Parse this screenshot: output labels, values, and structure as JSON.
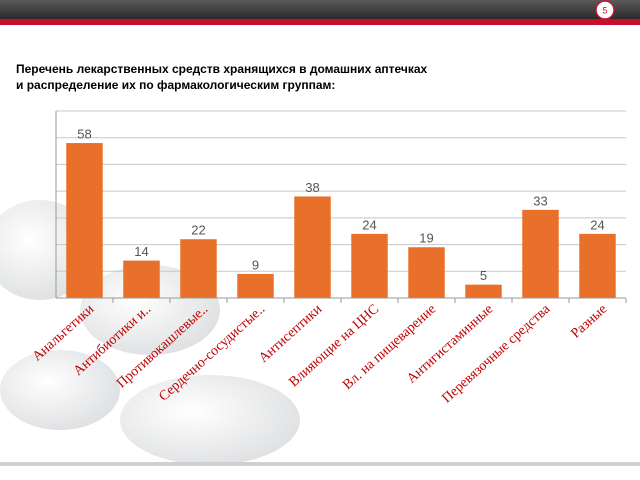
{
  "slide_number": "5",
  "chart_data": {
    "type": "bar",
    "title": "Перечень лекарственных средств  хранящихся  в домашних аптечках",
    "subtitle": "и распределение их по фармакологическим группам:",
    "categories": [
      "Анальгетики",
      "Антибиотики и..",
      "Противокашлевые..",
      "Сердечно-сосудистые..",
      "Антисептики",
      "Влияющие на ЦНС",
      "Вл. на пищеварение",
      "Антигистаминные",
      "Перевязочные средства",
      "Разные"
    ],
    "values": [
      58,
      14,
      22,
      9,
      38,
      24,
      19,
      5,
      33,
      24
    ],
    "color": "#e8702a",
    "ylim": [
      0,
      70
    ],
    "yticks": [
      0,
      10,
      20,
      30,
      40,
      50,
      60,
      70
    ],
    "grid": true
  }
}
